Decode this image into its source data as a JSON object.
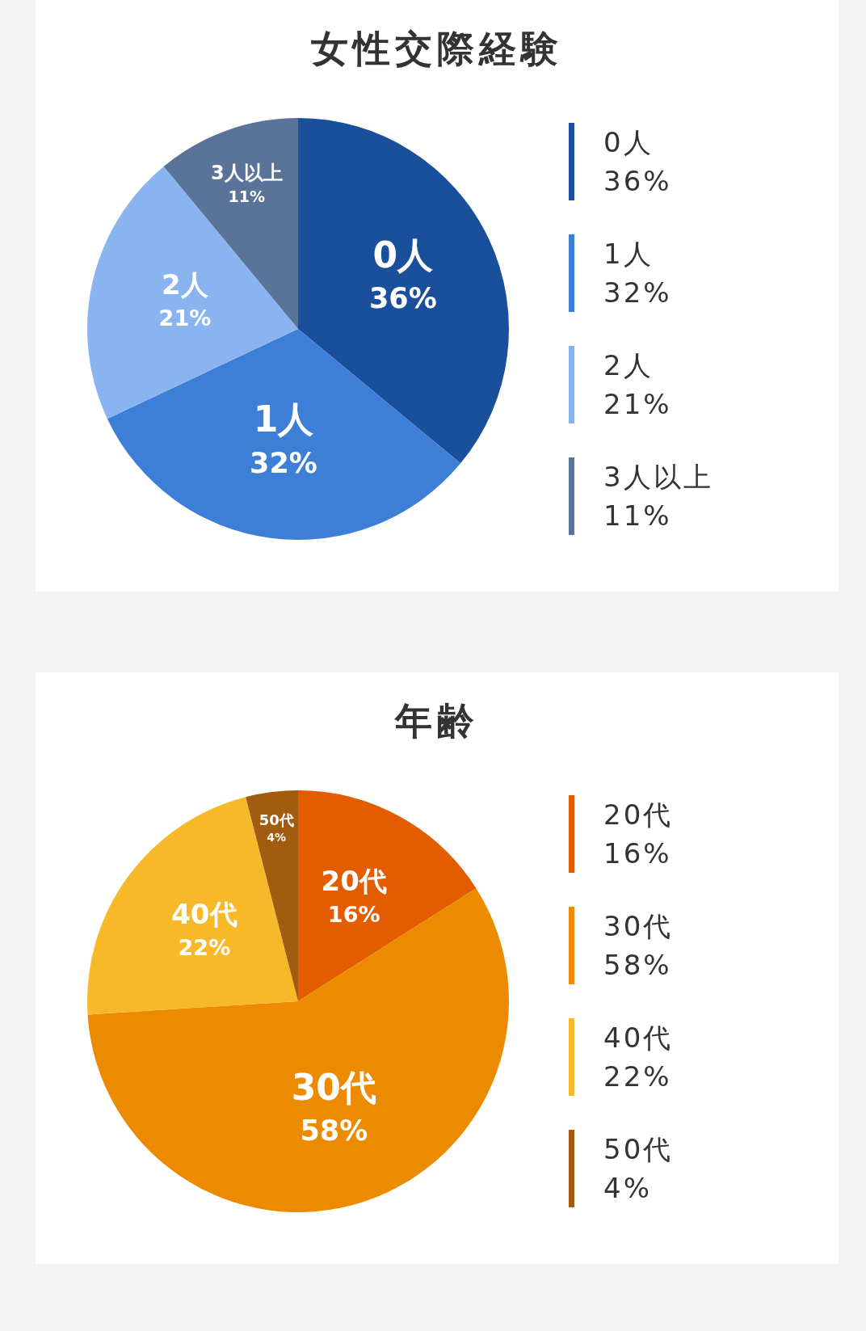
{
  "chart_data": [
    {
      "type": "pie",
      "title": "女性交際経験",
      "categories": [
        "0人",
        "1人",
        "2人",
        "3人以上"
      ],
      "values": [
        36,
        32,
        21,
        11
      ],
      "value_labels": [
        "36%",
        "32%",
        "21%",
        "11%"
      ],
      "colors": [
        "#1a4f9c",
        "#3d7fd6",
        "#8ab4f0",
        "#5a7399"
      ]
    },
    {
      "type": "pie",
      "title": "年齢",
      "categories": [
        "20代",
        "30代",
        "40代",
        "50代"
      ],
      "values": [
        16,
        58,
        22,
        4
      ],
      "value_labels": [
        "16%",
        "58%",
        "22%",
        "4%"
      ],
      "colors": [
        "#e35d00",
        "#ec8a00",
        "#f7b92a",
        "#a35c0f"
      ]
    }
  ]
}
